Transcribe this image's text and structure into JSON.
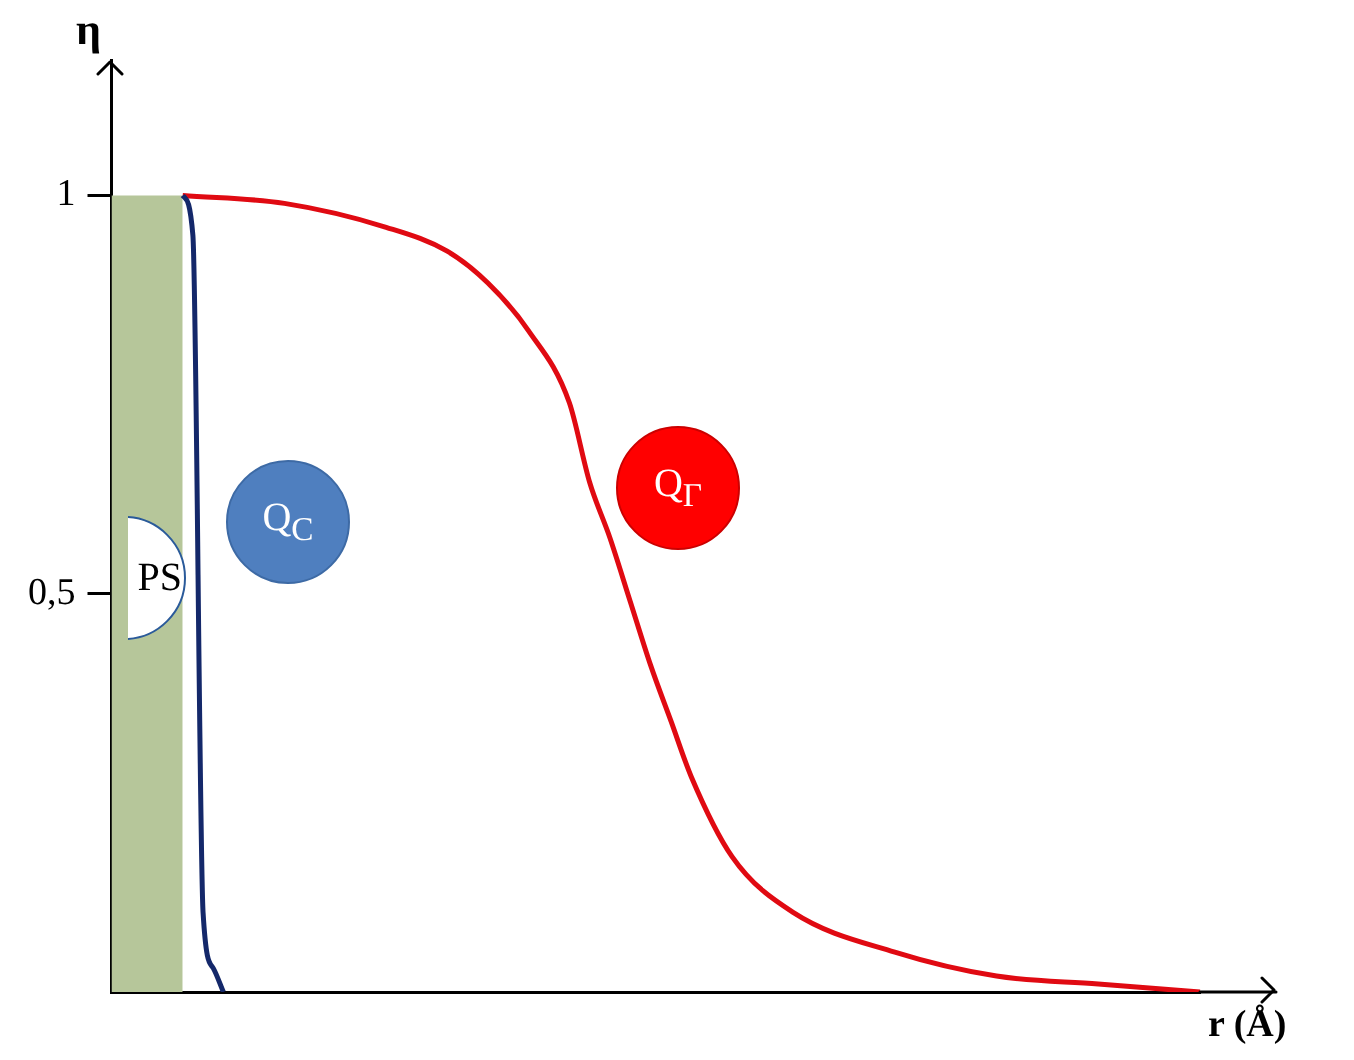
{
  "chart_data": {
    "type": "line",
    "xlabel": "r (Å)",
    "ylabel": "η",
    "tick_labels": "y",
    "legend": false,
    "grid": false,
    "marker": "none",
    "line_style": "solid",
    "categories": [
      null,
      null,
      null,
      null,
      null,
      null,
      null,
      null,
      null,
      null,
      null,
      null,
      null,
      null,
      null,
      null,
      null,
      null,
      null,
      null,
      null,
      null,
      null,
      null,
      null,
      null,
      null,
      null,
      null,
      null,
      null,
      null,
      null,
      null,
      null,
      null,
      null,
      null,
      null,
      null,
      null,
      null,
      null,
      null,
      null,
      null,
      null,
      null,
      null,
      null,
      null,
      null,
      null,
      null,
      null,
      null,
      null,
      null,
      null,
      null,
      null,
      null,
      null,
      null,
      null,
      null,
      null,
      null,
      null,
      null,
      null,
      null,
      null,
      null,
      null,
      null,
      null,
      null,
      null,
      null,
      null,
      null,
      null,
      null,
      null,
      null,
      null,
      null,
      null,
      null,
      null,
      null,
      null,
      null,
      null,
      null,
      null,
      null,
      null,
      null,
      null,
      null,
      null,
      null,
      null,
      null,
      null,
      null
    ],
    "ylim": [
      0,
      1.17
    ],
    "yticks": [
      {
        "value": 0.5,
        "label": "0,5"
      },
      1
    ],
    "series": [
      {
        "type": "area",
        "color": "#b6c69a",
        "values": [
          1,
          1,
          1,
          1,
          1,
          1,
          1,
          1,
          null,
          null,
          null,
          null,
          null,
          null,
          null,
          null,
          null,
          null,
          null,
          null,
          null,
          null,
          null,
          null,
          null,
          null,
          null,
          null,
          null,
          null,
          null,
          null,
          null,
          null,
          null,
          null,
          null,
          null,
          null,
          null,
          null,
          null,
          null,
          null,
          null,
          null,
          null,
          null,
          null,
          null,
          null,
          null,
          null,
          null,
          null,
          null,
          null,
          null,
          null,
          null,
          null,
          null,
          null,
          null,
          null,
          null,
          null,
          null,
          null,
          null,
          null,
          null,
          null,
          null,
          null,
          null,
          null,
          null,
          null,
          null,
          null,
          null,
          null,
          null,
          null,
          null,
          null,
          null,
          null,
          null,
          null,
          null,
          null,
          null,
          null,
          null,
          null,
          null,
          null,
          null,
          null,
          null,
          null,
          null,
          null,
          null,
          null,
          null
        ]
      },
      {
        "type": "line",
        "color": "#e00a12",
        "values": [
          null,
          null,
          null,
          null,
          null,
          null,
          null,
          1,
          null,
          null,
          null,
          null,
          null,
          null,
          null,
          null,
          null,
          0.99,
          null,
          null,
          null,
          null,
          null,
          null,
          null,
          null,
          null,
          0.96,
          null,
          null,
          null,
          null,
          null,
          0.93,
          null,
          null,
          null,
          0.89,
          null,
          null,
          null,
          0.83,
          null,
          null,
          null,
          0.74,
          null,
          0.64,
          null,
          0.57,
          null,
          0.49,
          null,
          0.41,
          null,
          0.34,
          null,
          0.27,
          null,
          null,
          null,
          0.17,
          null,
          null,
          null,
          null,
          null,
          0.1,
          null,
          null,
          null,
          null,
          null,
          null,
          null,
          null,
          null,
          0.05,
          null,
          null,
          null,
          null,
          null,
          null,
          null,
          null,
          null,
          0.02,
          null,
          null,
          null,
          null,
          null,
          null,
          null,
          null,
          null,
          0.01,
          null,
          null,
          null,
          null,
          null,
          null,
          null,
          null,
          null,
          0
        ]
      },
      {
        "type": "line",
        "color": "#14286a",
        "values": [
          null,
          null,
          null,
          null,
          null,
          null,
          null,
          1,
          0.95,
          0.1,
          0.03,
          0,
          null,
          null,
          null,
          null,
          null,
          null,
          null,
          null,
          null,
          null,
          null,
          null,
          null,
          null,
          null,
          null,
          null,
          null,
          null,
          null,
          null,
          null,
          null,
          null,
          null,
          null,
          null,
          null,
          null,
          null,
          null,
          null,
          null,
          null,
          null,
          null,
          null,
          null,
          null,
          null,
          null,
          null,
          null,
          null,
          null,
          null,
          null,
          null,
          null,
          null,
          null,
          null,
          null,
          null,
          null,
          null,
          null,
          null,
          null,
          null,
          null,
          null,
          null,
          null,
          null,
          null,
          null,
          null,
          null,
          null,
          null,
          null,
          null,
          null,
          null,
          null,
          null,
          null,
          null,
          null,
          null,
          null,
          null,
          null,
          null,
          null,
          null,
          null,
          null,
          null,
          null,
          null,
          null,
          null,
          null,
          null
        ]
      }
    ],
    "annotations": [
      "PS",
      "Q$_{C}$",
      "Q$_{Γ}$"
    ]
  }
}
